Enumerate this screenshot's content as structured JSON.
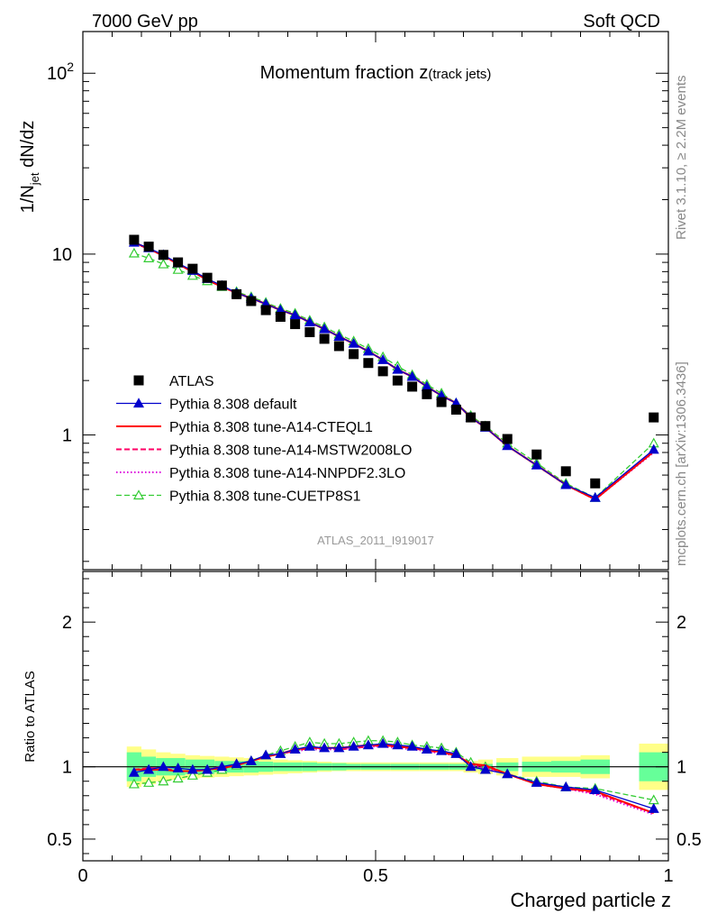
{
  "header": {
    "left": "7000 GeV pp",
    "right": "Soft QCD"
  },
  "side_text": {
    "rivet": "Rivet 3.1.10, ≥ 2.2M events",
    "mcplots": "mcplots.cern.ch [arXiv:1306.3436]"
  },
  "chart_data": {
    "type": "line",
    "title_main": "Momentum fraction ",
    "title_var": "z",
    "title_sub": "(track jets)",
    "analysis_label": "ATLAS_2011_I919017",
    "xlabel": "Charged particle z",
    "ylabel_main": "1/N",
    "ylabel_sub": "jet",
    "ylabel_rest": " dN/dz",
    "ratio_ylabel": "Ratio to ATLAS",
    "xlim": [
      0,
      1
    ],
    "ylim": [
      0.18,
      170
    ],
    "y_log": true,
    "ratio_ylim": [
      0.35,
      2.35
    ],
    "x_ticks": [
      "0",
      "0.5",
      "1"
    ],
    "y_ticks": [
      "1",
      "10",
      "10^2"
    ],
    "ratio_ticks": [
      "0.5",
      "1",
      "2"
    ],
    "x": [
      0.0875,
      0.1125,
      0.1375,
      0.1625,
      0.1875,
      0.2125,
      0.2375,
      0.2625,
      0.2875,
      0.3125,
      0.3375,
      0.3625,
      0.3875,
      0.4125,
      0.4375,
      0.4625,
      0.4875,
      0.5125,
      0.5375,
      0.5625,
      0.5875,
      0.6125,
      0.6375,
      0.6625,
      0.6875,
      0.725,
      0.775,
      0.825,
      0.875,
      0.975
    ],
    "series": [
      {
        "name": "ATLAS",
        "color": "#000000",
        "marker": "square",
        "values": [
          12.0,
          11.0,
          9.9,
          9.0,
          8.3,
          7.4,
          6.7,
          6.0,
          5.5,
          4.9,
          4.5,
          4.1,
          3.7,
          3.4,
          3.1,
          2.8,
          2.5,
          2.25,
          2.0,
          1.85,
          1.68,
          1.52,
          1.38,
          1.25,
          1.12,
          0.95,
          0.78,
          0.63,
          0.54,
          1.25
        ]
      },
      {
        "name": "Pythia 8.308 default",
        "color": "#0000cc",
        "marker": "triangle-filled",
        "values": [
          11.6,
          10.8,
          9.9,
          8.9,
          8.1,
          7.3,
          6.7,
          6.1,
          5.7,
          5.3,
          4.9,
          4.6,
          4.2,
          3.85,
          3.5,
          3.2,
          2.9,
          2.6,
          2.3,
          2.1,
          1.85,
          1.65,
          1.5,
          1.25,
          1.1,
          0.87,
          0.68,
          0.53,
          0.45,
          0.83
        ],
        "ratio": [
          0.96,
          0.98,
          1.0,
          0.99,
          0.98,
          0.98,
          1.0,
          1.02,
          1.04,
          1.08,
          1.09,
          1.12,
          1.14,
          1.13,
          1.13,
          1.14,
          1.15,
          1.16,
          1.15,
          1.14,
          1.12,
          1.11,
          1.09,
          1.0,
          0.98,
          0.95,
          0.89,
          0.86,
          0.84,
          0.71
        ]
      },
      {
        "name": "Pythia 8.308 tune-A14-CTEQL1",
        "color": "#ff0000",
        "marker": "none",
        "dash": "solid",
        "values": [
          11.6,
          10.7,
          9.8,
          8.8,
          8.0,
          7.2,
          6.6,
          6.1,
          5.7,
          5.3,
          4.9,
          4.6,
          4.2,
          3.85,
          3.5,
          3.2,
          2.9,
          2.6,
          2.3,
          2.1,
          1.85,
          1.65,
          1.5,
          1.25,
          1.1,
          0.87,
          0.68,
          0.53,
          0.44,
          0.81
        ],
        "ratio": [
          0.98,
          0.98,
          0.98,
          0.97,
          0.97,
          0.98,
          0.99,
          1.01,
          1.04,
          1.07,
          1.09,
          1.12,
          1.13,
          1.13,
          1.13,
          1.14,
          1.15,
          1.15,
          1.14,
          1.13,
          1.12,
          1.1,
          1.08,
          1.02,
          1.01,
          0.95,
          0.88,
          0.85,
          0.83,
          0.68
        ]
      },
      {
        "name": "Pythia 8.308 tune-A14-MSTW2008LO",
        "color": "#ff0066",
        "marker": "none",
        "dash": "dashed",
        "values": [
          11.5,
          10.7,
          9.8,
          8.8,
          8.0,
          7.2,
          6.6,
          6.1,
          5.7,
          5.3,
          4.9,
          4.6,
          4.2,
          3.85,
          3.5,
          3.2,
          2.9,
          2.6,
          2.3,
          2.1,
          1.85,
          1.65,
          1.5,
          1.25,
          1.1,
          0.87,
          0.68,
          0.53,
          0.44,
          0.81
        ],
        "ratio": [
          0.98,
          0.99,
          0.99,
          0.97,
          0.97,
          0.98,
          1.0,
          1.01,
          1.04,
          1.07,
          1.09,
          1.11,
          1.13,
          1.13,
          1.12,
          1.13,
          1.14,
          1.15,
          1.14,
          1.13,
          1.11,
          1.1,
          1.08,
          1.02,
          1.0,
          0.95,
          0.88,
          0.85,
          0.82,
          0.68
        ]
      },
      {
        "name": "Pythia 8.308 tune-A14-NNPDF2.3LO",
        "color": "#dd00dd",
        "marker": "none",
        "dash": "dotted",
        "values": [
          11.5,
          10.7,
          9.8,
          8.8,
          8.0,
          7.2,
          6.6,
          6.1,
          5.7,
          5.3,
          4.9,
          4.6,
          4.2,
          3.85,
          3.5,
          3.2,
          2.9,
          2.6,
          2.3,
          2.1,
          1.85,
          1.65,
          1.5,
          1.25,
          1.1,
          0.87,
          0.68,
          0.53,
          0.44,
          0.8
        ],
        "ratio": [
          0.98,
          0.98,
          0.98,
          0.97,
          0.97,
          0.98,
          1.0,
          1.01,
          1.04,
          1.07,
          1.09,
          1.11,
          1.12,
          1.12,
          1.12,
          1.13,
          1.14,
          1.14,
          1.13,
          1.12,
          1.11,
          1.09,
          1.08,
          1.01,
          0.99,
          0.95,
          0.88,
          0.85,
          0.81,
          0.67
        ]
      },
      {
        "name": "Pythia 8.308 tune-CUETP8S1",
        "color": "#33cc33",
        "marker": "triangle-open",
        "dash": "dashed",
        "values": [
          10.1,
          9.5,
          8.8,
          8.2,
          7.6,
          7.1,
          6.6,
          6.2,
          5.8,
          5.4,
          5.0,
          4.7,
          4.3,
          3.95,
          3.6,
          3.3,
          3.0,
          2.7,
          2.4,
          2.15,
          1.9,
          1.7,
          1.5,
          1.28,
          1.12,
          0.9,
          0.7,
          0.54,
          0.45,
          0.9
        ],
        "ratio": [
          0.88,
          0.89,
          0.9,
          0.92,
          0.94,
          0.96,
          0.98,
          1.01,
          1.04,
          1.08,
          1.11,
          1.14,
          1.17,
          1.16,
          1.16,
          1.17,
          1.18,
          1.18,
          1.17,
          1.15,
          1.14,
          1.13,
          1.1,
          1.03,
          1.0,
          0.95,
          0.9,
          0.86,
          0.85,
          0.77
        ]
      }
    ],
    "ratio_band_inner": [
      0.1,
      0.07,
      0.06,
      0.06,
      0.05,
      0.05,
      0.04,
      0.04,
      0.04,
      0.035,
      0.03,
      0.03,
      0.03,
      0.025,
      0.025,
      0.02,
      0.02,
      0.02,
      0.02,
      0.02,
      0.02,
      0.02,
      0.02,
      0.02,
      0.02,
      0.03,
      0.035,
      0.04,
      0.05,
      0.1
    ],
    "ratio_band_outer": [
      0.14,
      0.12,
      0.1,
      0.09,
      0.08,
      0.075,
      0.07,
      0.065,
      0.06,
      0.055,
      0.05,
      0.045,
      0.04,
      0.035,
      0.03,
      0.03,
      0.03,
      0.03,
      0.03,
      0.03,
      0.03,
      0.03,
      0.03,
      0.04,
      0.05,
      0.06,
      0.07,
      0.07,
      0.08,
      0.16
    ],
    "band_colors": {
      "inner": "#66ff99",
      "outer": "#ffff88"
    },
    "legend": {
      "placement": "center-left"
    }
  }
}
